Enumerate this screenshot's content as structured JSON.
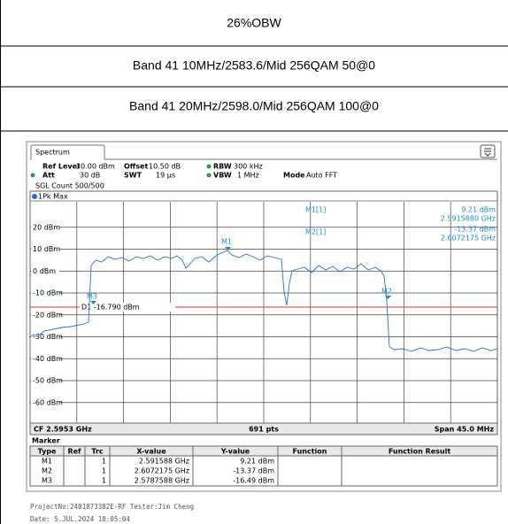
{
  "header": {
    "rows": [
      "26%OBW",
      "Band 41 10MHz/2583.6/Mid 256QAM 50@0",
      "Band 41 20MHz/2598.0/Mid 256QAM 100@0"
    ]
  },
  "spectrum": {
    "tab": "Spectrum",
    "settings": [
      [
        "Ref Level",
        "30.00 dBm",
        "Offset",
        "10.50 dB",
        "RBW",
        "300 kHz"
      ],
      [
        "Att",
        "30 dB",
        "SWT",
        "19 µs",
        "VBW",
        "1 MHz",
        "Mode",
        "Auto FFT"
      ]
    ],
    "count": "SGL Count 500/500",
    "trace": "1Pk Max",
    "readout": [
      "M1[1]",
      "9.21 dBm",
      "2.5915880 GHz",
      "M2[1]",
      "-13.37 dBm",
      "2.6072175 GHz"
    ],
    "y_labels": [
      "20 dBm",
      "10 dBm",
      "0 dBm",
      "-10 dBm",
      "-20 dBm",
      "-30 dBm",
      "-40 dBm",
      "-50 dBm",
      "-60 dBm"
    ],
    "markers": [
      "M1",
      "M2",
      "M3"
    ],
    "display_line": "D1 -16.790 dBm",
    "footer": [
      "CF 2.5953 GHz",
      "691 pts",
      "Span 45.0 MHz"
    ]
  },
  "marker_table": {
    "title": "Marker",
    "columns": [
      "Type",
      "Ref",
      "Trc",
      "X-value",
      "Y-value",
      "Function",
      "Function Result"
    ],
    "rows": [
      [
        "M1",
        "1",
        "2.591588 GHz",
        "9.21 dBm"
      ],
      [
        "M2",
        "1",
        "2.6072175 GHz",
        "-13.37 dBm"
      ],
      [
        "M3",
        "1",
        "2.5787588 GHz",
        "-16.49 dBm"
      ]
    ]
  },
  "footer": {
    "lines": [
      "ProjectNo:2401873382E-RF Tester:Jim Cheng",
      "Date: 5.JUL.2024 18:05:04"
    ]
  }
}
